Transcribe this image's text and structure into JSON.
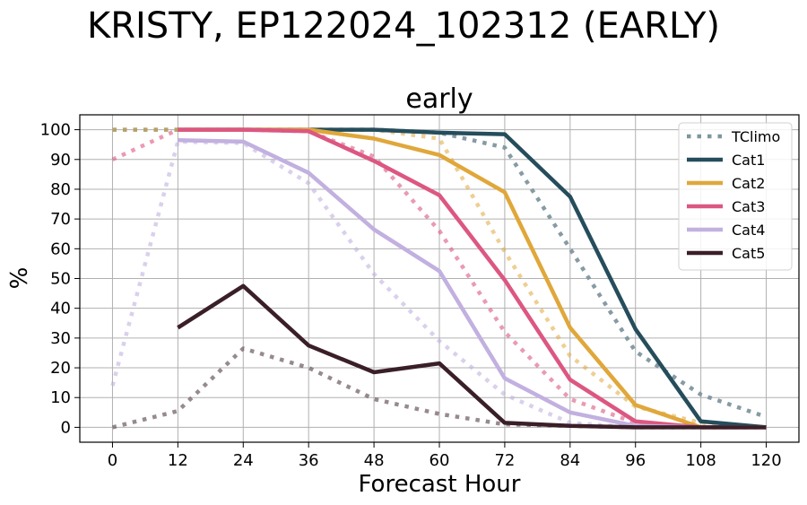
{
  "figure": {
    "suptitle": "KRISTY, EP122024_102312 (EARLY)"
  },
  "chart_data": {
    "type": "line",
    "title": "early",
    "xlabel": "Forecast Hour",
    "ylabel": "%",
    "xlim": [
      -6,
      126
    ],
    "ylim": [
      -5,
      105
    ],
    "xticks": [
      0,
      12,
      24,
      36,
      48,
      60,
      72,
      84,
      96,
      108,
      120
    ],
    "yticks": [
      0,
      10,
      20,
      30,
      40,
      50,
      60,
      70,
      80,
      90,
      100
    ],
    "grid": true,
    "legend_position": "top-right",
    "legend": [
      {
        "label": "TClimo",
        "color": "#7f969e",
        "style": "dotted"
      },
      {
        "label": "Cat1",
        "color": "#254d5c",
        "style": "solid"
      },
      {
        "label": "Cat2",
        "color": "#e0a73a",
        "style": "solid"
      },
      {
        "label": "Cat3",
        "color": "#dc5781",
        "style": "solid"
      },
      {
        "label": "Cat4",
        "color": "#c2b0e0",
        "style": "solid"
      },
      {
        "label": "Cat5",
        "color": "#3a1f28",
        "style": "solid"
      }
    ],
    "series": [
      {
        "name": "Cat1",
        "kind": "solid",
        "color": "#254d5c",
        "x": [
          12,
          24,
          36,
          48,
          60,
          72,
          84,
          96,
          108,
          120
        ],
        "values": [
          100,
          100,
          100,
          100,
          99,
          98.5,
          77.5,
          33,
          2,
          0
        ]
      },
      {
        "name": "Cat2",
        "kind": "solid",
        "color": "#e0a73a",
        "x": [
          12,
          24,
          36,
          48,
          60,
          72,
          84,
          96,
          108,
          120
        ],
        "values": [
          100,
          100,
          100,
          97,
          91.5,
          79,
          33.5,
          7.5,
          0,
          0
        ]
      },
      {
        "name": "Cat3",
        "kind": "solid",
        "color": "#dc5781",
        "x": [
          12,
          24,
          36,
          48,
          60,
          72,
          84,
          96,
          108,
          120
        ],
        "values": [
          100,
          100,
          99.5,
          89.5,
          78,
          49.5,
          16,
          2,
          0,
          0
        ]
      },
      {
        "name": "Cat4",
        "kind": "solid",
        "color": "#c2b0e0",
        "x": [
          12,
          24,
          36,
          48,
          60,
          72,
          84,
          96,
          108,
          120
        ],
        "values": [
          96.5,
          96,
          85.5,
          66.5,
          52.5,
          16.5,
          5,
          0.5,
          0,
          0
        ]
      },
      {
        "name": "Cat5",
        "kind": "solid",
        "color": "#3a1f28",
        "x": [
          12,
          24,
          36,
          48,
          60,
          72,
          84,
          96,
          108,
          120
        ],
        "values": [
          33.5,
          47.5,
          27.5,
          18.5,
          21.5,
          1.5,
          0.5,
          0,
          0,
          0
        ]
      },
      {
        "kind": "dotted",
        "color": "#7f969e",
        "opacity": 0.95,
        "x": [
          0,
          12,
          24,
          36,
          48,
          60,
          72,
          84,
          96,
          108,
          120
        ],
        "values": [
          100,
          100,
          100,
          100,
          100,
          99,
          94,
          60,
          25.5,
          11,
          3.5
        ]
      },
      {
        "kind": "dotted",
        "color": "#e0a73a",
        "opacity": 0.55,
        "x": [
          0,
          12,
          24,
          36,
          48,
          60,
          72,
          84,
          96,
          108,
          120
        ],
        "values": [
          100,
          100,
          100,
          100,
          100,
          97,
          59,
          24,
          7,
          1.5,
          0
        ]
      },
      {
        "kind": "dotted",
        "color": "#dc5781",
        "opacity": 0.6,
        "x": [
          0,
          12,
          24,
          36,
          48,
          60,
          72,
          84,
          96,
          108,
          120
        ],
        "values": [
          90,
          100,
          100,
          99.5,
          91,
          66,
          32,
          9.5,
          1.5,
          0,
          0
        ]
      },
      {
        "kind": "dotted",
        "color": "#c2b0e0",
        "opacity": 0.6,
        "x": [
          0,
          12,
          24,
          36,
          48,
          60,
          72,
          84,
          96,
          108,
          120
        ],
        "values": [
          14,
          96,
          95.5,
          82,
          51.5,
          29,
          11,
          1.5,
          0,
          0,
          0
        ]
      },
      {
        "kind": "dotted",
        "color": "#6b5860",
        "opacity": 0.7,
        "x": [
          0,
          12,
          24,
          36,
          48,
          60,
          72,
          84,
          96,
          108,
          120
        ],
        "values": [
          0,
          5.5,
          26.5,
          20,
          9.5,
          4.5,
          1,
          0.5,
          0,
          0,
          0
        ]
      }
    ]
  }
}
